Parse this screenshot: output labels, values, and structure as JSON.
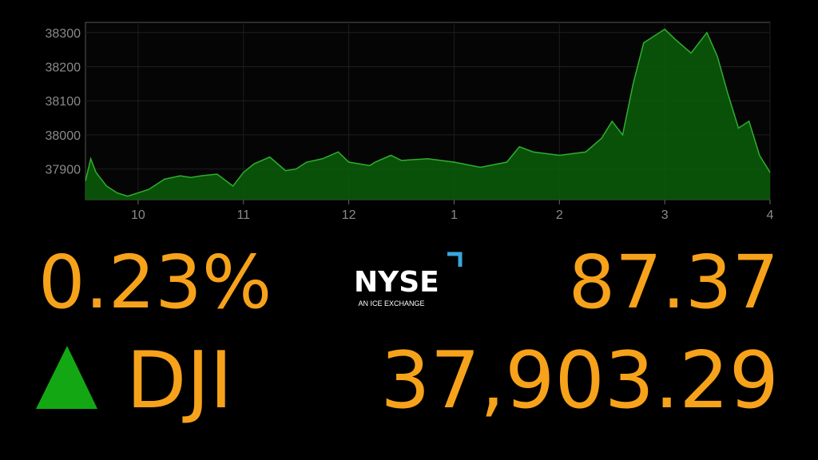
{
  "chart_data": {
    "type": "area",
    "color": "#2fae2f",
    "grid": true,
    "x": [
      9.5,
      9.55,
      9.6,
      9.7,
      9.8,
      9.9,
      10.0,
      10.1,
      10.25,
      10.4,
      10.5,
      10.6,
      10.75,
      10.9,
      11.0,
      11.1,
      11.25,
      11.4,
      11.5,
      11.6,
      11.75,
      11.9,
      12.0,
      12.2,
      12.25,
      12.4,
      12.5,
      12.75,
      13.0,
      13.25,
      13.5,
      13.62,
      13.75,
      14.0,
      14.25,
      14.4,
      14.5,
      14.6,
      14.7,
      14.8,
      15.0,
      15.1,
      15.25,
      15.4,
      15.5,
      15.6,
      15.7,
      15.8,
      15.9,
      16.0
    ],
    "values": [
      37865,
      37930,
      37890,
      37850,
      37830,
      37820,
      37830,
      37840,
      37870,
      37880,
      37875,
      37880,
      37885,
      37850,
      37890,
      37915,
      37935,
      37895,
      37900,
      37920,
      37930,
      37950,
      37920,
      37910,
      37920,
      37940,
      37925,
      37930,
      37920,
      37905,
      37920,
      37965,
      37950,
      37940,
      37950,
      37990,
      38040,
      38000,
      38150,
      38270,
      38310,
      38280,
      38240,
      38300,
      38230,
      38120,
      38020,
      38040,
      37940,
      37890
    ],
    "xlim": [
      9.5,
      16
    ],
    "ylim": [
      37810,
      38330
    ],
    "xticks": [
      10,
      11,
      12,
      {
        "value": 13,
        "label": "1"
      },
      {
        "value": 14,
        "label": "2"
      },
      {
        "value": 15,
        "label": "3"
      },
      {
        "value": 16,
        "label": "4"
      }
    ],
    "yticks": [
      37900,
      38000,
      38100,
      38200,
      38300
    ]
  },
  "quote": {
    "percent": "0.23%",
    "change": "87.37",
    "symbol": "DJI",
    "price": "37,903.29"
  },
  "logo": {
    "name": "NYSE",
    "tagline": "AN ICE EXCHANGE"
  }
}
